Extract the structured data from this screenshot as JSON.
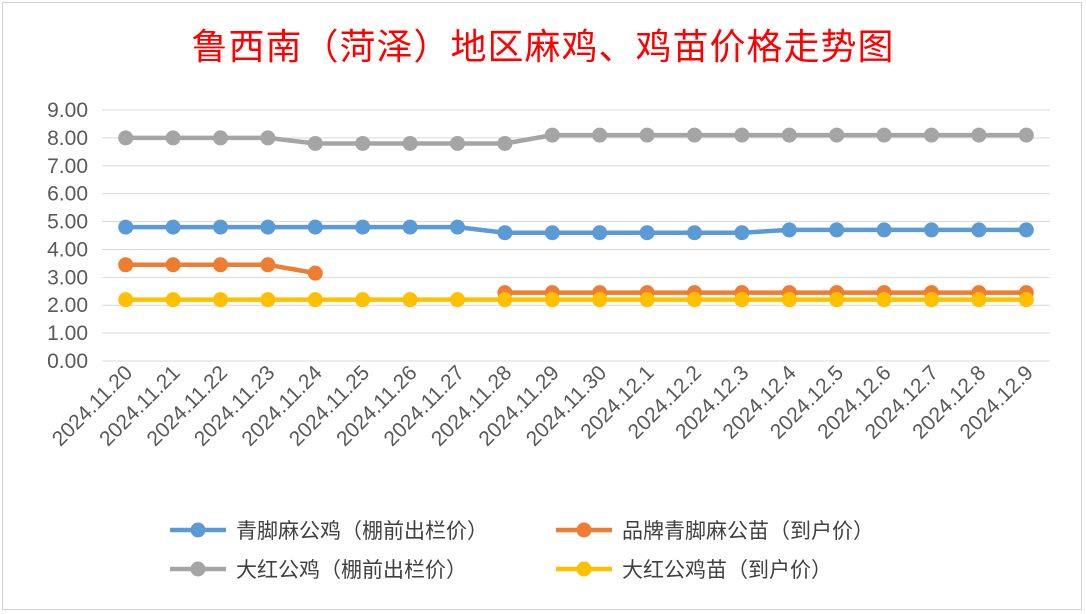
{
  "chart_data": {
    "type": "line",
    "title": "鲁西南（菏泽）地区麻鸡、鸡苗价格走势图",
    "categories": [
      "2024.11.20",
      "2024.11.21",
      "2024.11.22",
      "2024.11.23",
      "2024.11.24",
      "2024.11.25",
      "2024.11.26",
      "2024.11.27",
      "2024.11.28",
      "2024.11.29",
      "2024.11.30",
      "2024.12.1",
      "2024.12.2",
      "2024.12.3",
      "2024.12.4",
      "2024.12.5",
      "2024.12.6",
      "2024.12.7",
      "2024.12.8",
      "2024.12.9"
    ],
    "ylim": [
      0,
      9
    ],
    "yticks": [
      "0.00",
      "1.00",
      "2.00",
      "3.00",
      "4.00",
      "5.00",
      "6.00",
      "7.00",
      "8.00",
      "9.00"
    ],
    "grid": true,
    "legend_position": "bottom",
    "series": [
      {
        "name": "青脚麻公鸡（棚前出栏价）",
        "color": "#5b9bd5",
        "values": [
          4.8,
          4.8,
          4.8,
          4.8,
          4.8,
          4.8,
          4.8,
          4.8,
          4.6,
          4.6,
          4.6,
          4.6,
          4.6,
          4.6,
          4.7,
          4.7,
          4.7,
          4.7,
          4.7,
          4.7
        ]
      },
      {
        "name": "品牌青脚麻公苗（到户价）",
        "color": "#ed7d31",
        "values": [
          3.45,
          3.45,
          3.45,
          3.45,
          3.15,
          null,
          null,
          null,
          2.45,
          2.45,
          2.45,
          2.45,
          2.45,
          2.45,
          2.45,
          2.45,
          2.45,
          2.45,
          2.45,
          2.45
        ]
      },
      {
        "name": "大红公鸡（棚前出栏价）",
        "color": "#a5a5a5",
        "values": [
          8.0,
          8.0,
          8.0,
          8.0,
          7.8,
          7.8,
          7.8,
          7.8,
          7.8,
          8.1,
          8.1,
          8.1,
          8.1,
          8.1,
          8.1,
          8.1,
          8.1,
          8.1,
          8.1,
          8.1
        ]
      },
      {
        "name": "大红公鸡苗（到户价）",
        "color": "#ffc000",
        "values": [
          2.2,
          2.2,
          2.2,
          2.2,
          2.2,
          2.2,
          2.2,
          2.2,
          2.2,
          2.2,
          2.2,
          2.2,
          2.2,
          2.2,
          2.2,
          2.2,
          2.2,
          2.2,
          2.2,
          2.2
        ]
      }
    ]
  }
}
